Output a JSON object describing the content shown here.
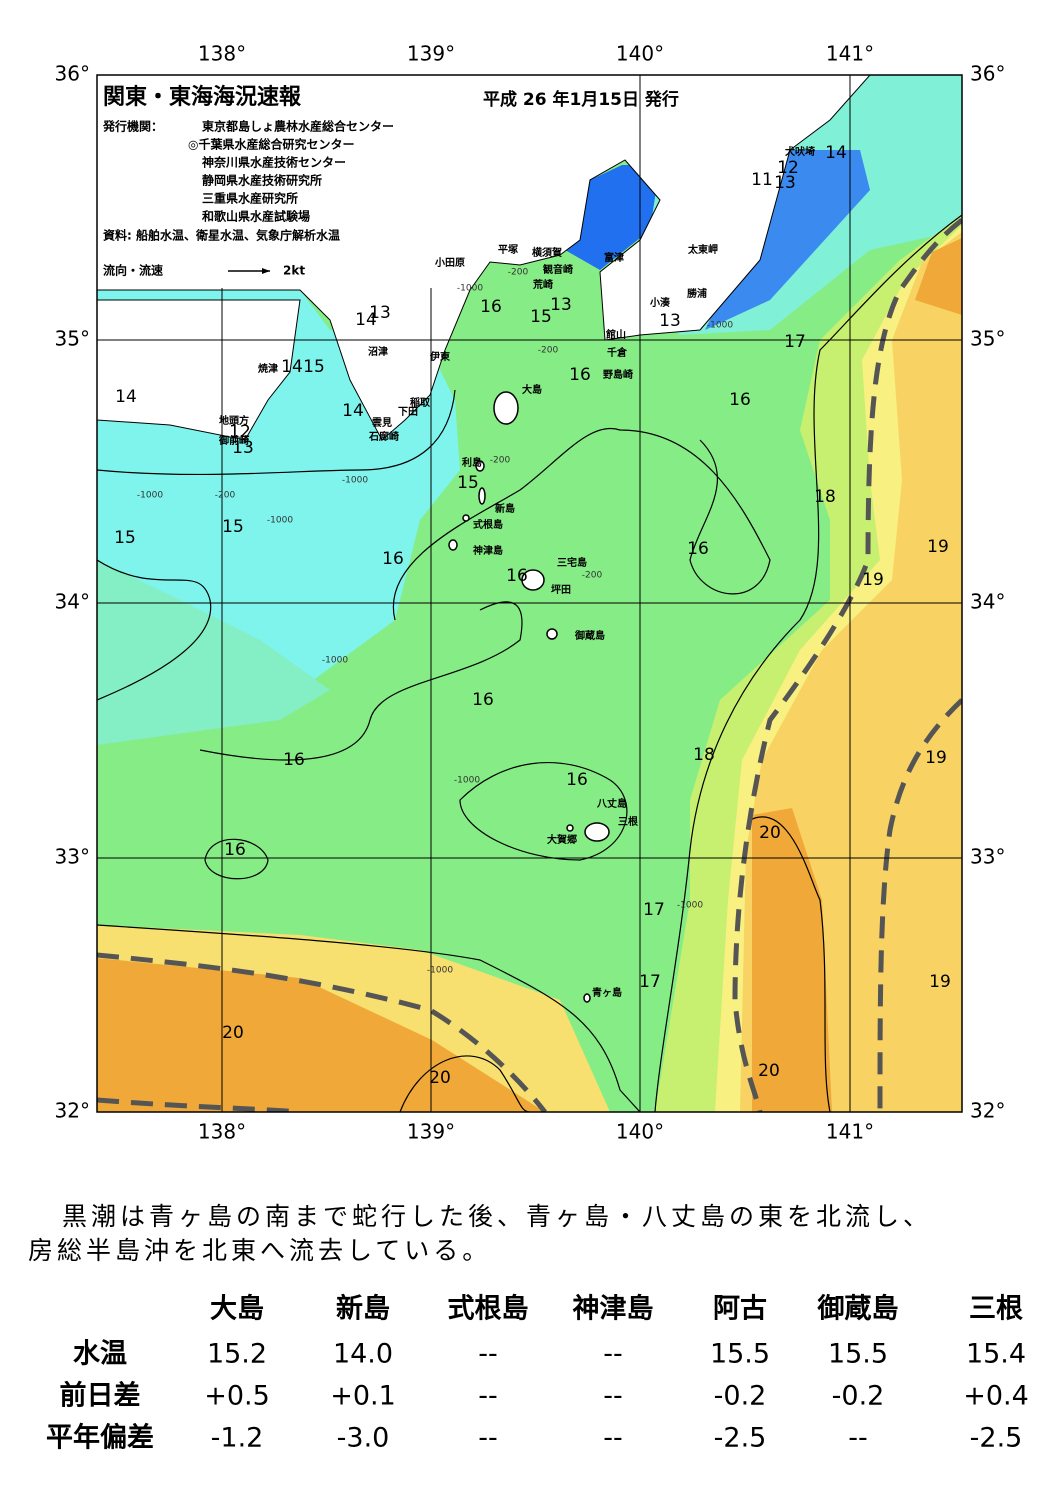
{
  "header": {
    "title": "関東・東海海況速報",
    "date": "平成 26 年1月15日 発行",
    "issuer_label": "発行機関：",
    "issuers": [
      "東京都島しょ農林水産総合センター",
      "◎千葉県水産総合研究センター",
      "神奈川県水産技術センター",
      "静岡県水産技術研究所",
      "三重県水産研究所",
      "和歌山県水産試験場"
    ],
    "sources": "資料: 船舶水温、衛星水温、気象庁解析水温",
    "legend_label": "流向・流速",
    "legend_scale": "2kt"
  },
  "map": {
    "lon_labels": [
      "138°",
      "139°",
      "140°",
      "141°"
    ],
    "lat_labels": [
      "36°",
      "35°",
      "34°",
      "33°",
      "32°"
    ],
    "places": [
      "犬吠埼",
      "太東岬",
      "勝浦",
      "小湊",
      "館山",
      "千倉",
      "野島崎",
      "富津",
      "横須賀",
      "観音崎",
      "荒崎",
      "平塚",
      "小田原",
      "沼津",
      "伊東",
      "焼津",
      "稲取",
      "下田",
      "雲見",
      "石廊崎",
      "地頭方",
      "御前崎",
      "大島",
      "利島",
      "新島",
      "式根島",
      "神津島",
      "三宅島",
      "坪田",
      "御蔵島",
      "八丈島",
      "三根",
      "大賀郷",
      "青ヶ島"
    ],
    "isotherm_labels": [
      14,
      12,
      11,
      13,
      16,
      15,
      13,
      14,
      13,
      13,
      17,
      16,
      16,
      14,
      15,
      14,
      14,
      12,
      13,
      15,
      18,
      15,
      15,
      16,
      16,
      19,
      19,
      16,
      16,
      18,
      19,
      16,
      16,
      20,
      16,
      17,
      17,
      19,
      20,
      20,
      20
    ],
    "depth_labels": [
      "-200",
      "-1000",
      "-200",
      "-1000",
      "-200",
      "-1000",
      "-200",
      "-1000",
      "-1000",
      "-1000",
      "-200",
      "-1000",
      "-1000",
      "-1000"
    ]
  },
  "description": [
    "黒潮は青ヶ島の南まで蛇行した後、青ヶ島・八丈島の東を北流し、",
    "房総半島沖を北東へ流去している。"
  ],
  "table": {
    "columns": [
      "大島",
      "新島",
      "式根島",
      "神津島",
      "阿古",
      "御蔵島",
      "三根"
    ],
    "rows": [
      {
        "label": "水温",
        "values": [
          "15.2",
          "14.0",
          "--",
          "--",
          "15.5",
          "15.5",
          "15.4"
        ]
      },
      {
        "label": "前日差",
        "values": [
          "+0.5",
          "+0.1",
          "--",
          "--",
          "-0.2",
          "-0.2",
          "+0.4"
        ]
      },
      {
        "label": "平年偏差",
        "values": [
          "-1.2",
          "-3.0",
          "--",
          "--",
          "-2.5",
          "--",
          "-2.5"
        ]
      }
    ]
  }
}
